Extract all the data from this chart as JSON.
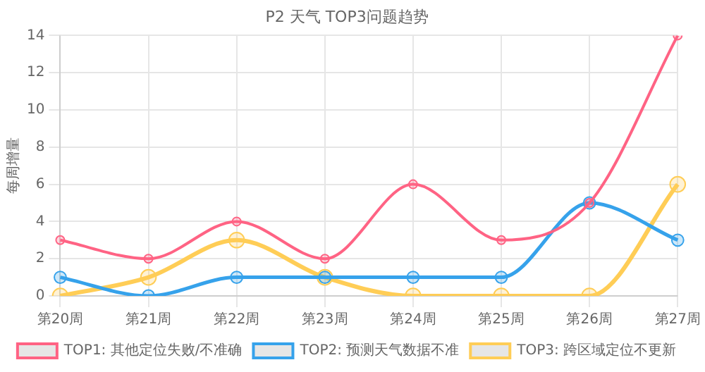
{
  "chart_data": {
    "type": "line",
    "title": "P2 天气 TOP3问题趋势",
    "ylabel": "每周增量",
    "categories": [
      "第20周",
      "第21周",
      "第22周",
      "第23周",
      "第24周",
      "第25周",
      "第26周",
      "第27周"
    ],
    "series": [
      {
        "name": "TOP1: 其他定位失败/不准确",
        "color": "#ff6384",
        "values": [
          3,
          2,
          4,
          2,
          6,
          3,
          5,
          14
        ]
      },
      {
        "name": "TOP2: 预测天气数据不准",
        "color": "#36a2eb",
        "values": [
          1,
          0,
          1,
          1,
          1,
          1,
          5,
          3
        ]
      },
      {
        "name": "TOP3: 跨区域定位不更新",
        "color": "#ffcd56",
        "values": [
          0,
          1,
          3,
          1,
          0,
          0,
          0,
          6
        ]
      }
    ],
    "ylim": [
      0,
      14
    ],
    "yticks": [
      0,
      2,
      4,
      6,
      8,
      10,
      12,
      14
    ],
    "grid": true,
    "legend": "bottom",
    "marker": "circle",
    "line_style": "solid"
  }
}
